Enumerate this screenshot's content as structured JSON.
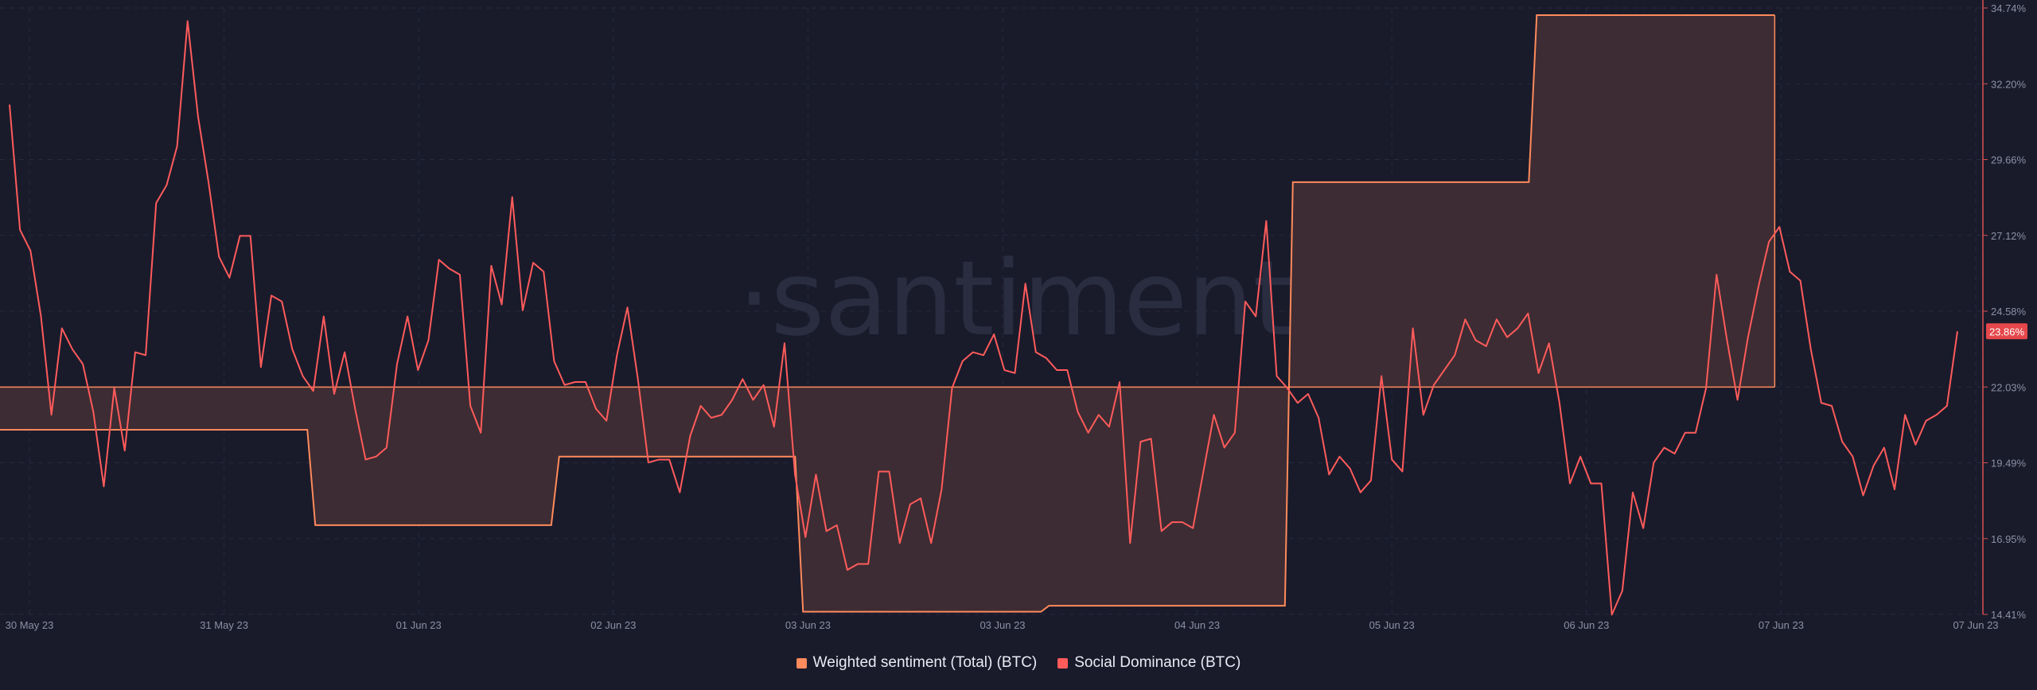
{
  "watermark": "·santiment·",
  "legend": {
    "items": [
      {
        "label": "Weighted sentiment (Total) (BTC)",
        "color": "#ff8a5c"
      },
      {
        "label": "Social Dominance (BTC)",
        "color": "#ff5b5b"
      }
    ]
  },
  "chart_data": {
    "type": "line",
    "x_tick_labels": [
      "30 May 23",
      "31 May 23",
      "01 Jun 23",
      "02 Jun 23",
      "03 Jun 23",
      "03 Jun 23",
      "04 Jun 23",
      "05 Jun 23",
      "06 Jun 23",
      "07 Jun 23",
      "07 Jun 23"
    ],
    "y_tick_labels": [
      "34.74%",
      "32.20%",
      "29.66%",
      "27.12%",
      "24.58%",
      "22.03%",
      "19.49%",
      "16.95%",
      "14.41%"
    ],
    "ylim": [
      14.41,
      34.74
    ],
    "current_value_label": "23.86%",
    "grid": true,
    "legend_position": "bottom-center",
    "series": [
      {
        "name": "Weighted sentiment (Total) (BTC)",
        "color": "#ff8a5c",
        "style": "step-area",
        "baseline": 22.03,
        "segments": [
          {
            "x_start": 0.0,
            "x_end": 0.155,
            "value": 20.6
          },
          {
            "x_start": 0.159,
            "x_end": 0.278,
            "value": 17.4
          },
          {
            "x_start": 0.282,
            "x_end": 0.401,
            "value": 19.7
          },
          {
            "x_start": 0.405,
            "x_end": 0.525,
            "value": 14.5
          },
          {
            "x_start": 0.529,
            "x_end": 0.648,
            "value": 14.7
          },
          {
            "x_start": 0.652,
            "x_end": 0.771,
            "value": 28.9
          },
          {
            "x_start": 0.775,
            "x_end": 0.895,
            "value": 34.5
          }
        ]
      },
      {
        "name": "Social Dominance (BTC)",
        "color": "#ff5b5b",
        "style": "line",
        "x_range": [
          0,
          1
        ],
        "values": [
          31.5,
          27.3,
          26.6,
          24.4,
          21.1,
          24.0,
          23.3,
          22.8,
          21.2,
          18.7,
          22.0,
          19.9,
          23.2,
          23.1,
          28.2,
          28.8,
          30.1,
          34.3,
          31.1,
          28.9,
          26.4,
          25.7,
          27.1,
          27.1,
          22.7,
          25.1,
          24.9,
          23.3,
          22.4,
          21.9,
          24.4,
          21.8,
          23.2,
          21.3,
          19.6,
          19.7,
          20.0,
          22.8,
          24.4,
          22.6,
          23.6,
          26.3,
          26.0,
          25.8,
          21.4,
          20.5,
          26.1,
          24.8,
          28.4,
          24.6,
          26.2,
          25.9,
          22.9,
          22.1,
          22.2,
          22.2,
          21.3,
          20.9,
          23.1,
          24.7,
          22.3,
          19.5,
          19.6,
          19.6,
          18.5,
          20.4,
          21.4,
          21.0,
          21.1,
          21.6,
          22.3,
          21.6,
          22.1,
          20.7,
          23.5,
          19.1,
          17.0,
          19.1,
          17.2,
          17.4,
          15.9,
          16.1,
          16.1,
          19.2,
          19.2,
          16.8,
          18.1,
          18.3,
          16.8,
          18.6,
          22.0,
          22.9,
          23.2,
          23.1,
          23.8,
          22.6,
          22.5,
          25.5,
          23.2,
          23.0,
          22.6,
          22.6,
          21.2,
          20.5,
          21.1,
          20.7,
          22.2,
          16.8,
          20.2,
          20.3,
          17.2,
          17.5,
          17.5,
          17.3,
          19.2,
          21.1,
          20.0,
          20.5,
          24.9,
          24.4,
          27.6,
          22.4,
          22.0,
          21.5,
          21.8,
          21.0,
          19.1,
          19.7,
          19.3,
          18.5,
          18.9,
          22.4,
          19.6,
          19.2,
          24.0,
          21.1,
          22.1,
          22.6,
          23.1,
          24.3,
          23.6,
          23.4,
          24.3,
          23.7,
          24.0,
          24.5,
          22.5,
          23.5,
          21.5,
          18.8,
          19.7,
          18.8,
          18.8,
          14.4,
          15.2,
          18.5,
          17.3,
          19.5,
          20.0,
          19.8,
          20.5,
          20.5,
          22.0,
          25.8,
          23.6,
          21.6,
          23.7,
          25.4,
          26.9,
          27.4,
          25.9,
          25.6,
          23.3,
          21.5,
          21.4,
          20.2,
          19.7,
          18.4,
          19.4,
          20.0,
          18.6,
          21.1,
          20.1,
          20.9,
          21.1,
          21.4,
          23.9
        ]
      }
    ]
  }
}
